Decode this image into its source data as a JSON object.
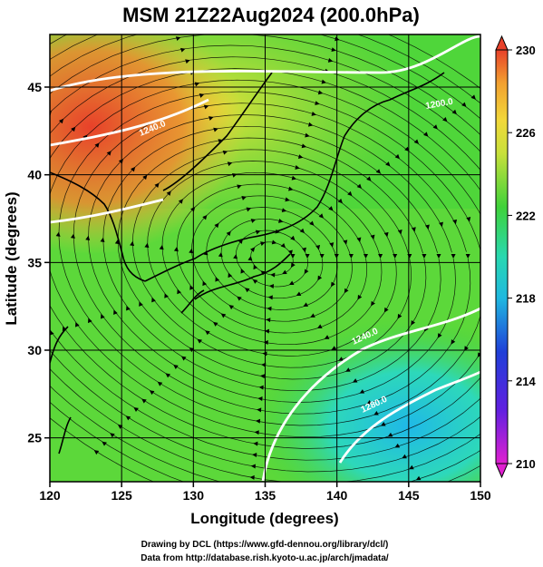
{
  "title": "MSM 21Z22Aug2024 (200.0hPa)",
  "x_axis": {
    "label": "Longitude (degrees)",
    "ticks": [
      "120",
      "125",
      "130",
      "135",
      "140",
      "145",
      "150"
    ]
  },
  "y_axis": {
    "label": "Latitude  (degrees)",
    "ticks": [
      "25",
      "30",
      "35",
      "40",
      "45"
    ]
  },
  "colorbar": {
    "ticks": [
      "210",
      "214",
      "218",
      "222",
      "226",
      "230"
    ]
  },
  "contour_labels": [
    "1240.0",
    "1200.0",
    "1240.0",
    "1280.0"
  ],
  "footer": {
    "line1": "Drawing by DCL (https://www.gfd-dennou.org/library/dcl/)",
    "line2": "Data from http://database.rish.kyoto-u.ac.jp/arch/jmadata/"
  },
  "colors": {
    "warm": "#e8412a",
    "orange": "#f2a030",
    "yellow": "#d8e23a",
    "green": "#3fd23a",
    "cyan": "#28d8c8",
    "blue": "#1f3fd8",
    "magenta": "#e020d0"
  }
}
